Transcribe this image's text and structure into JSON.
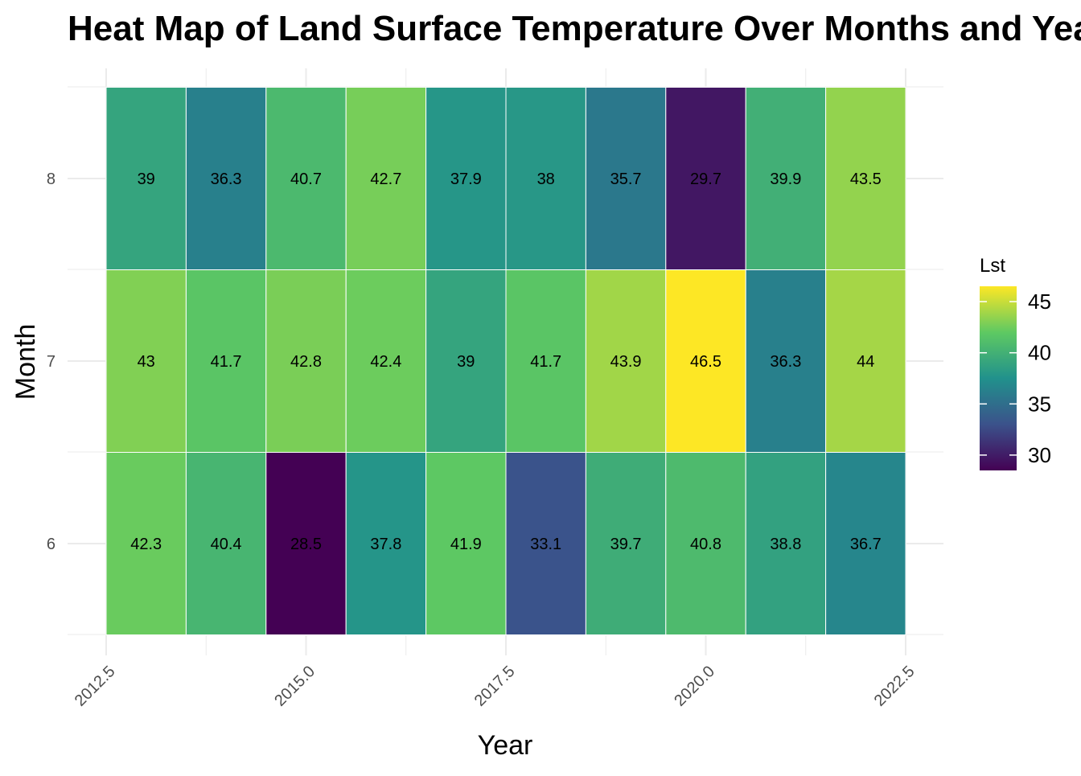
{
  "chart_data": {
    "type": "heatmap",
    "title": "Heat Map of Land Surface Temperature Over Months and Years",
    "xlabel": "Year",
    "ylabel": "Month",
    "x": [
      2013,
      2014,
      2015,
      2016,
      2017,
      2018,
      2019,
      2020,
      2021,
      2022
    ],
    "y": [
      6,
      7,
      8
    ],
    "x_ticks": [
      "2012.5",
      "2015.0",
      "2017.5",
      "2020.0",
      "2022.5"
    ],
    "y_ticks": [
      "6",
      "7",
      "8"
    ],
    "xlim": [
      2012.5,
      2022.5
    ],
    "values": {
      "6": [
        42.3,
        40.4,
        28.5,
        37.8,
        41.9,
        33.1,
        39.7,
        40.8,
        38.8,
        36.7
      ],
      "7": [
        43,
        41.7,
        42.8,
        42.4,
        39,
        41.7,
        43.9,
        46.5,
        36.3,
        44
      ],
      "8": [
        39,
        36.3,
        40.7,
        42.7,
        37.9,
        38,
        35.7,
        29.7,
        39.9,
        43.5
      ]
    },
    "legend": {
      "title": "Lst",
      "ticks": [
        "30",
        "35",
        "40",
        "45"
      ],
      "range": [
        28.5,
        46.5
      ],
      "placement": "right",
      "colormap": [
        "#440154",
        "#3b528b",
        "#21918c",
        "#5ec962",
        "#fde725"
      ]
    },
    "grid": true
  }
}
